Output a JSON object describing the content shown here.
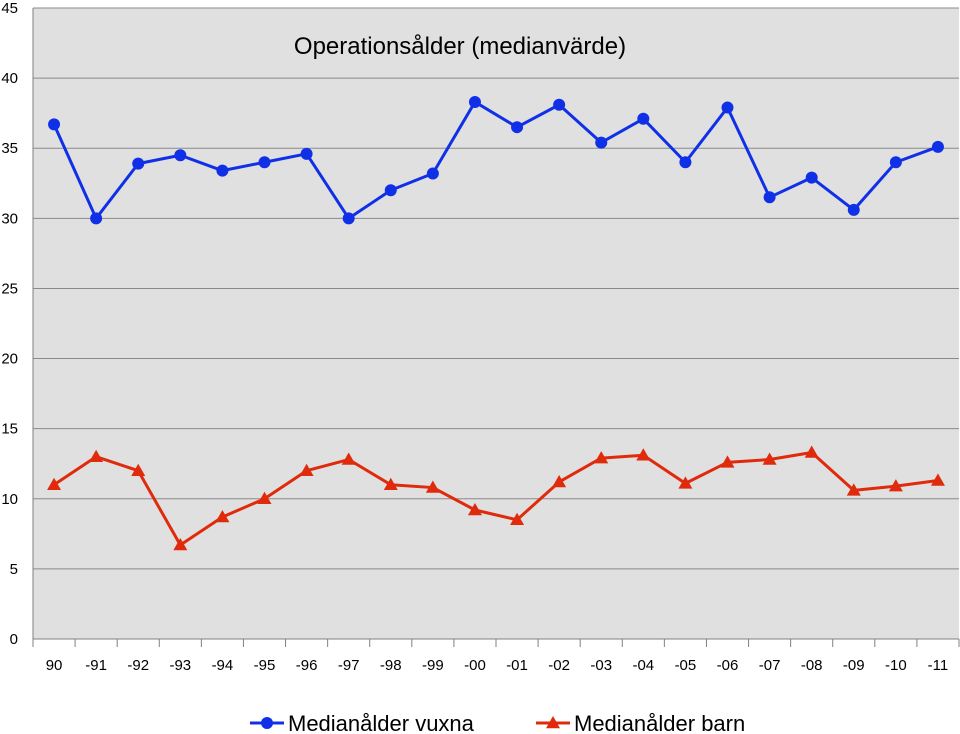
{
  "chart_data": {
    "type": "line",
    "title": "Operationsålder (medianvärde)",
    "xlabel": "",
    "ylabel": "",
    "categories": [
      "90",
      "-91",
      "-92",
      "-93",
      "-94",
      "-95",
      "-96",
      "-97",
      "-98",
      "-99",
      "-00",
      "-01",
      "-02",
      "-03",
      "-04",
      "-05",
      "-06",
      "-07",
      "-08",
      "-09",
      "-10",
      "-11"
    ],
    "ylim": [
      0,
      45
    ],
    "yticks": [
      0,
      5,
      10,
      15,
      20,
      25,
      30,
      35,
      40,
      45
    ],
    "grid": true,
    "legend_position": "bottom",
    "background_color": "#e0e0e0",
    "series": [
      {
        "name": "Medianålder vuxna",
        "color": "#1030e8",
        "marker": "circle",
        "values": [
          36.7,
          30.0,
          33.9,
          34.5,
          33.4,
          34.0,
          34.6,
          30.0,
          32.0,
          33.2,
          38.3,
          36.5,
          38.1,
          35.4,
          37.1,
          34.0,
          37.9,
          31.5,
          32.9,
          30.6,
          34.0,
          35.1
        ]
      },
      {
        "name": "Medianålder barn",
        "color": "#e02a0c",
        "marker": "triangle",
        "values": [
          11.0,
          13.0,
          12.0,
          6.7,
          8.7,
          10.0,
          12.0,
          12.8,
          11.0,
          10.8,
          9.2,
          8.5,
          11.2,
          12.9,
          13.1,
          11.1,
          12.6,
          12.8,
          13.3,
          10.6,
          10.9,
          11.3
        ]
      }
    ]
  }
}
